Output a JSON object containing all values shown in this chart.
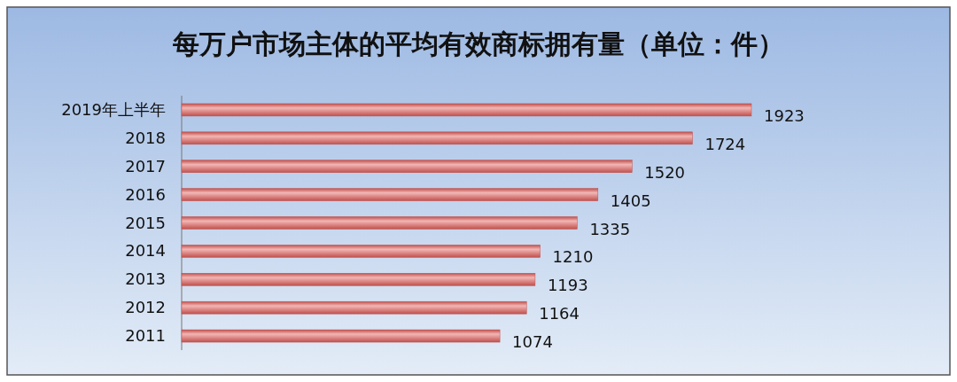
{
  "chart_data": {
    "type": "bar",
    "orientation": "horizontal",
    "title": "每万户市场主体的平均有效商标拥有量（单位：件）",
    "categories": [
      "2019年上半年",
      "2018",
      "2017",
      "2016",
      "2015",
      "2014",
      "2013",
      "2012",
      "2011"
    ],
    "values": [
      1923,
      1724,
      1520,
      1405,
      1335,
      1210,
      1193,
      1164,
      1074
    ],
    "color": "#c0504d",
    "data_labels": true
  }
}
